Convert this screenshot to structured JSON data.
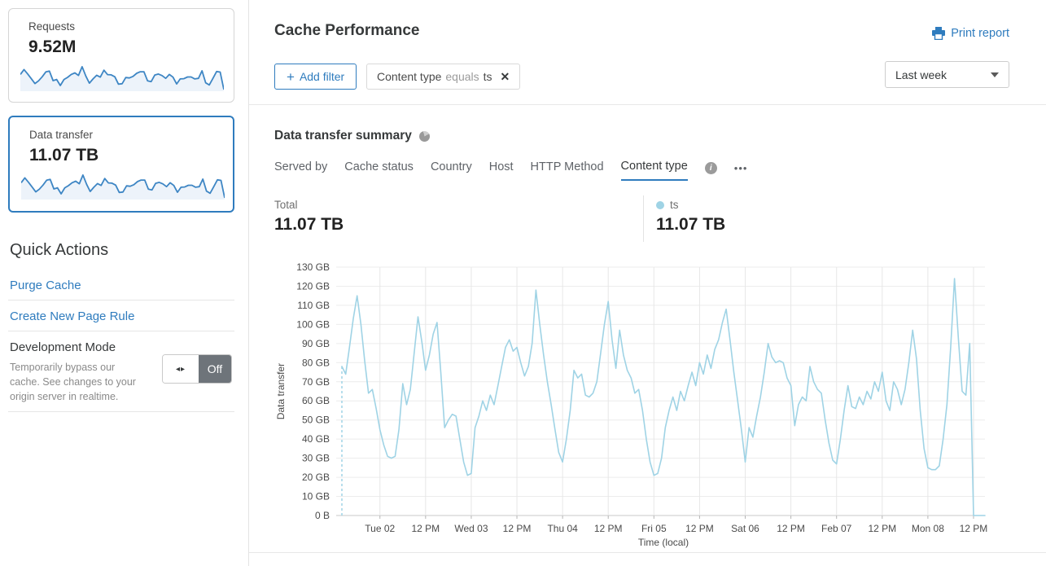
{
  "colors": {
    "accent": "#2f7cbe",
    "chart_line": "#9fd3e5",
    "sparkline": "#3e86c4",
    "sparkline_fill": "#edf3fa",
    "toggle_off_bg": "#6e747a"
  },
  "icons": {
    "plus": "+",
    "close": "✕",
    "info": "i",
    "ellipsis": "•••",
    "toggle_arrows": "◂▸"
  },
  "sidebar": {
    "cards": [
      {
        "label": "Requests",
        "value": "9.52M"
      },
      {
        "label": "Data transfer",
        "value": "11.07 TB",
        "selected": true
      }
    ],
    "quick_actions": {
      "title": "Quick Actions",
      "links": [
        {
          "label": "Purge Cache"
        },
        {
          "label": "Create New Page Rule"
        }
      ],
      "dev_mode": {
        "title": "Development Mode",
        "description": "Temporarily bypass our cache. See changes to your origin server in realtime.",
        "toggle_state": "Off"
      }
    }
  },
  "header": {
    "title": "Cache Performance",
    "print_report": "Print report",
    "add_filter_label": "Add filter",
    "filter_chip": {
      "field": "Content type",
      "operator": "equals",
      "value": "ts"
    },
    "time_range": "Last week"
  },
  "summary": {
    "title": "Data transfer summary",
    "tabs": [
      "Served by",
      "Cache status",
      "Country",
      "Host",
      "HTTP Method",
      "Content type"
    ],
    "active_tab": "Content type",
    "total_label": "Total",
    "total_value": "11.07 TB",
    "legend": {
      "name": "ts",
      "value": "11.07 TB",
      "color": "#9fd3e5"
    }
  },
  "chart_data": {
    "type": "line",
    "title": "Data transfer summary — ts (Last week)",
    "xlabel": "Time (local)",
    "ylabel": "Data transfer",
    "unit": "GB",
    "ylim": [
      0,
      130
    ],
    "y_tick_labels": [
      "0 B",
      "10 GB",
      "20 GB",
      "30 GB",
      "40 GB",
      "50 GB",
      "60 GB",
      "70 GB",
      "80 GB",
      "90 GB",
      "100 GB",
      "110 GB",
      "120 GB",
      "130 GB"
    ],
    "x_range_hours": [
      0,
      169
    ],
    "x_tick_hours": [
      10,
      22,
      34,
      46,
      58,
      70,
      82,
      94,
      106,
      118,
      130,
      142,
      154,
      166
    ],
    "x_tick_labels": [
      "Tue 02",
      "12 PM",
      "Wed 03",
      "12 PM",
      "Thu 04",
      "12 PM",
      "Fri 05",
      "12 PM",
      "Sat 06",
      "12 PM",
      "Feb 07",
      "12 PM",
      "Mon 08",
      "12 PM"
    ],
    "grid": true,
    "leading_dashed_from_zero": true,
    "legend_position": "top-right",
    "series": [
      {
        "name": "ts",
        "color": "#9fd3e5",
        "values": [
          78,
          74,
          88,
          103,
          115,
          100,
          81,
          64,
          66,
          56,
          45,
          37,
          31,
          30,
          31,
          45,
          69,
          58,
          66,
          85,
          104,
          91,
          76,
          84,
          95,
          101,
          75,
          46,
          50,
          53,
          52,
          40,
          28,
          21,
          22,
          46,
          52,
          60,
          55,
          63,
          58,
          68,
          78,
          88,
          92,
          86,
          88,
          80,
          73,
          78,
          90,
          118,
          100,
          84,
          70,
          58,
          45,
          33,
          28,
          40,
          55,
          76,
          72,
          74,
          63,
          62,
          64,
          70,
          85,
          100,
          112,
          92,
          77,
          97,
          84,
          76,
          72,
          64,
          66,
          55,
          40,
          28,
          21,
          22,
          30,
          46,
          55,
          62,
          55,
          65,
          60,
          68,
          75,
          68,
          80,
          74,
          84,
          77,
          87,
          92,
          101,
          108,
          92,
          75,
          60,
          45,
          28,
          46,
          41,
          52,
          62,
          75,
          90,
          83,
          80,
          81,
          80,
          72,
          68,
          47,
          58,
          62,
          60,
          78,
          70,
          66,
          64,
          50,
          38,
          29,
          27,
          40,
          55,
          68,
          57,
          56,
          62,
          58,
          65,
          61,
          70,
          65,
          75,
          60,
          55,
          70,
          66,
          58,
          66,
          80,
          97,
          82,
          55,
          35,
          25,
          24,
          24,
          26,
          40,
          58,
          88,
          124,
          93,
          65,
          63,
          90,
          0,
          0,
          0,
          0
        ]
      }
    ]
  }
}
